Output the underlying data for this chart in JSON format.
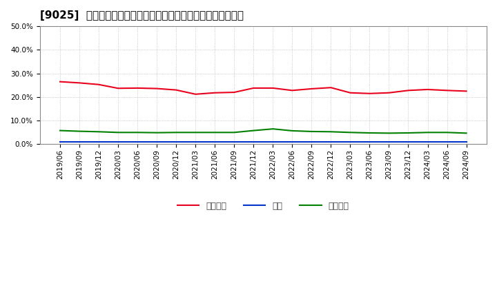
{
  "title": "[9025]  売上債権、在庫、買入債務の総資産に対する比率の推移",
  "x_labels": [
    "2019/06",
    "2019/09",
    "2019/12",
    "2020/03",
    "2020/06",
    "2020/09",
    "2020/12",
    "2021/03",
    "2021/06",
    "2021/09",
    "2021/12",
    "2022/03",
    "2022/06",
    "2022/09",
    "2022/12",
    "2023/03",
    "2023/06",
    "2023/09",
    "2023/12",
    "2024/03",
    "2024/06",
    "2024/09"
  ],
  "receivables": [
    0.265,
    0.26,
    0.253,
    0.237,
    0.238,
    0.236,
    0.23,
    0.212,
    0.218,
    0.22,
    0.238,
    0.238,
    0.228,
    0.235,
    0.24,
    0.218,
    0.215,
    0.218,
    0.228,
    0.232,
    0.228,
    0.225
  ],
  "inventory": [
    0.01,
    0.01,
    0.01,
    0.01,
    0.01,
    0.01,
    0.01,
    0.01,
    0.01,
    0.01,
    0.01,
    0.01,
    0.01,
    0.01,
    0.01,
    0.01,
    0.01,
    0.01,
    0.01,
    0.01,
    0.01,
    0.01
  ],
  "payables": [
    0.058,
    0.055,
    0.053,
    0.05,
    0.05,
    0.049,
    0.05,
    0.05,
    0.05,
    0.05,
    0.058,
    0.065,
    0.057,
    0.054,
    0.053,
    0.05,
    0.048,
    0.047,
    0.048,
    0.05,
    0.05,
    0.047
  ],
  "line_colors": {
    "receivables": "#e8001c",
    "inventory": "#0033cc",
    "payables": "#008000"
  },
  "legend_labels": {
    "receivables": "売上債権",
    "inventory": "在庫",
    "payables": "買入債務"
  },
  "ylim": [
    0.0,
    0.5
  ],
  "yticks": [
    0.0,
    0.1,
    0.2,
    0.3,
    0.4,
    0.5
  ],
  "background_color": "#ffffff",
  "plot_bg_color": "#ffffff",
  "grid_color": "#aaaaaa",
  "title_fontsize": 11,
  "tick_fontsize": 7.5,
  "legend_fontsize": 9
}
